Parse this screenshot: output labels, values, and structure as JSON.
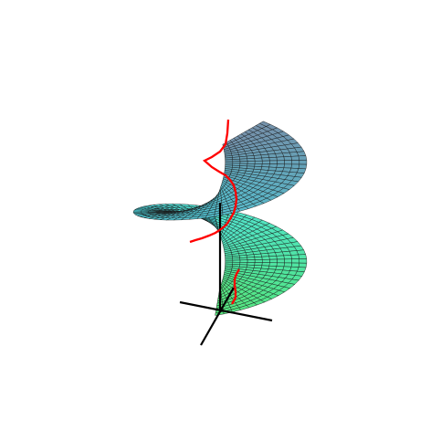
{
  "figure": {
    "surface": "helicoid-strip",
    "colors": {
      "background": "#ffffff",
      "grid_line": "#1a1a1a",
      "axes": "#000000",
      "curve": "#ff0000",
      "sheet_low": "#6f8ea8",
      "sheet_mid": "#44e0e8",
      "sheet_high": "#55e67a"
    }
  }
}
